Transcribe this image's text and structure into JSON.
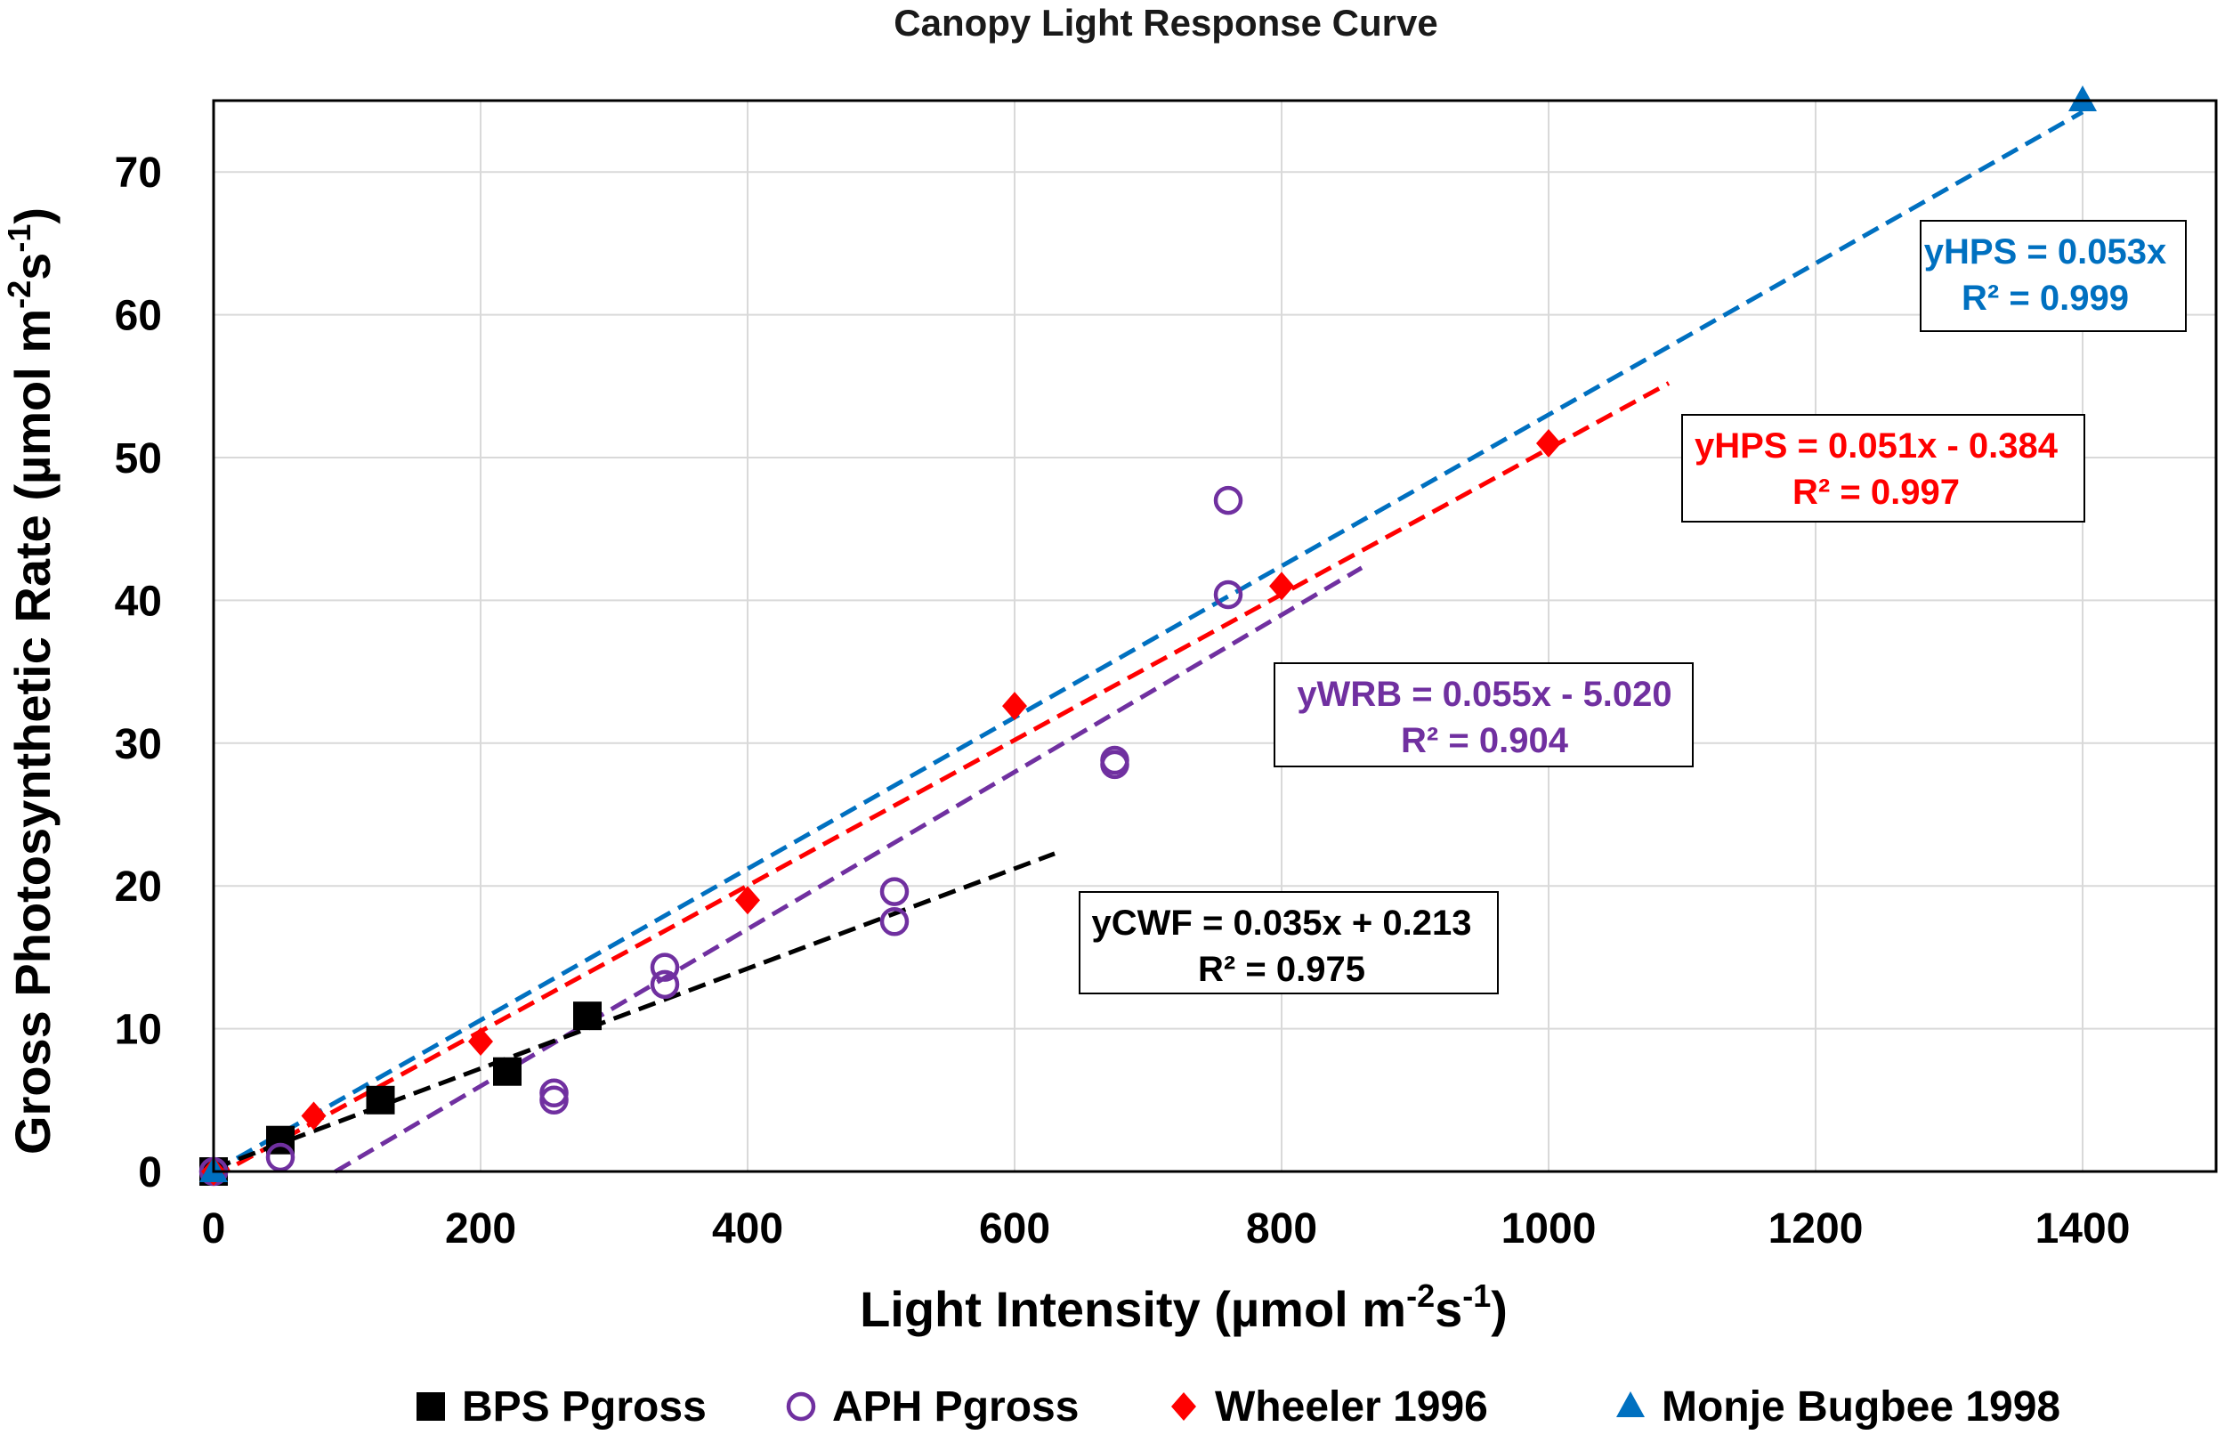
{
  "chart_data": {
    "type": "scatter",
    "title": "Canopy Light Response Curve",
    "xlabel": {
      "main": "Light Intensity (µmol m",
      "sup1": "-2",
      "mid": "s",
      "sup2": "-1",
      "end": ")"
    },
    "ylabel": {
      "main": "Gross Photosynthetic Rate (µmol m",
      "sup1": "-2",
      "mid": "s",
      "sup2": "-1",
      "end": ")"
    },
    "xlim": [
      0,
      1500
    ],
    "ylim": [
      0,
      75
    ],
    "xticks": [
      0,
      200,
      400,
      600,
      800,
      1000,
      1200,
      1400
    ],
    "yticks": [
      0,
      10,
      20,
      30,
      40,
      50,
      60,
      70
    ],
    "xgrid": [
      0,
      200,
      400,
      600,
      800,
      1000,
      1200,
      1400,
      1500
    ],
    "ygrid": [
      0,
      10,
      20,
      30,
      40,
      50,
      60,
      70
    ],
    "grid": true,
    "legend_position": "bottom",
    "series": [
      {
        "name": "BPS Pgross",
        "marker": "square",
        "color": "#000000",
        "points": [
          [
            0,
            0
          ],
          [
            50,
            2.2
          ],
          [
            125,
            5.0
          ],
          [
            220,
            7.0
          ],
          [
            280,
            10.9
          ]
        ]
      },
      {
        "name": "APH Pgross",
        "marker": "open-circle",
        "color": "#7030a0",
        "points": [
          [
            0,
            0
          ],
          [
            50,
            1.0
          ],
          [
            255,
            5.5
          ],
          [
            255,
            5.0
          ],
          [
            338,
            14.3
          ],
          [
            338,
            13.1
          ],
          [
            510,
            19.6
          ],
          [
            510,
            17.5
          ],
          [
            675,
            28.8
          ],
          [
            675,
            28.5
          ],
          [
            760,
            47.0
          ],
          [
            760,
            40.4
          ]
        ]
      },
      {
        "name": "Wheeler 1996",
        "marker": "diamond",
        "color": "#ff0000",
        "points": [
          [
            0,
            0
          ],
          [
            75,
            3.9
          ],
          [
            200,
            9.1
          ],
          [
            400,
            19.0
          ],
          [
            600,
            32.6
          ],
          [
            800,
            41.0
          ],
          [
            1000,
            51.0
          ]
        ]
      },
      {
        "name": "Monje Bugbee 1998",
        "marker": "triangle",
        "color": "#0070c0",
        "points": [
          [
            0,
            0
          ],
          [
            1400,
            75.0
          ]
        ]
      }
    ],
    "trendlines": [
      {
        "series": "Monje Bugbee 1998",
        "color": "#0070c0",
        "slope": 0.053,
        "intercept": 0,
        "x_range": [
          0,
          1400
        ]
      },
      {
        "series": "Wheeler 1996",
        "color": "#ff0000",
        "slope": 0.051,
        "intercept": -0.384,
        "x_range": [
          0,
          1090
        ]
      },
      {
        "series": "APH Pgross",
        "color": "#7030a0",
        "slope": 0.055,
        "intercept": -5.02,
        "x_range": [
          91,
          860
        ]
      },
      {
        "series": "BPS Pgross",
        "color": "#000000",
        "slope": 0.035,
        "intercept": 0.213,
        "x_range": [
          0,
          630
        ]
      }
    ],
    "annotations": [
      {
        "color": "#0070c0",
        "line1": "yHPS = 0.053x",
        "line2": "R² = 0.999"
      },
      {
        "color": "#ff0000",
        "line1": "yHPS = 0.051x - 0.384",
        "line2": "R² = 0.997"
      },
      {
        "color": "#7030a0",
        "line1": "yWRB = 0.055x - 5.020",
        "line2": "R² = 0.904"
      },
      {
        "color": "#000000",
        "line1": "yCWF = 0.035x + 0.213",
        "line2": "R² = 0.975"
      }
    ]
  }
}
